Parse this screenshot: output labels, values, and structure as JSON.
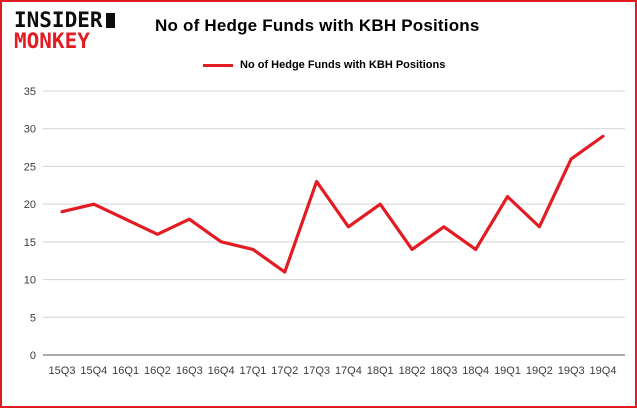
{
  "brand": {
    "line1": "INSIDER",
    "line2": "MONKEY"
  },
  "header": {
    "title": "No of Hedge Funds with KBH Positions"
  },
  "legend": {
    "label": "No of Hedge Funds with KBH Positions"
  },
  "colors": {
    "accent": "#e31b23",
    "grid": "#d3d3d3",
    "zero_axis": "#5a5a5a",
    "axis_text": "#3d3d3d"
  },
  "chart_data": {
    "type": "line",
    "title": "No of Hedge Funds with KBH Positions",
    "categories": [
      "15Q3",
      "15Q4",
      "16Q1",
      "16Q2",
      "16Q3",
      "16Q4",
      "17Q1",
      "17Q2",
      "17Q3",
      "17Q4",
      "18Q1",
      "18Q2",
      "18Q3",
      "18Q4",
      "19Q1",
      "19Q2",
      "19Q3",
      "19Q4"
    ],
    "series": [
      {
        "name": "No of Hedge Funds with KBH Positions",
        "color": "#e31b23",
        "values": [
          19,
          20,
          18,
          16,
          18,
          15,
          14,
          11,
          23,
          17,
          20,
          14,
          17,
          14,
          21,
          17,
          26,
          29
        ]
      }
    ],
    "xlabel": "",
    "ylabel": "",
    "ylim": [
      0,
      35
    ],
    "yticks": [
      0,
      5,
      10,
      15,
      20,
      25,
      30,
      35
    ],
    "grid": true,
    "legend_position": "top"
  }
}
